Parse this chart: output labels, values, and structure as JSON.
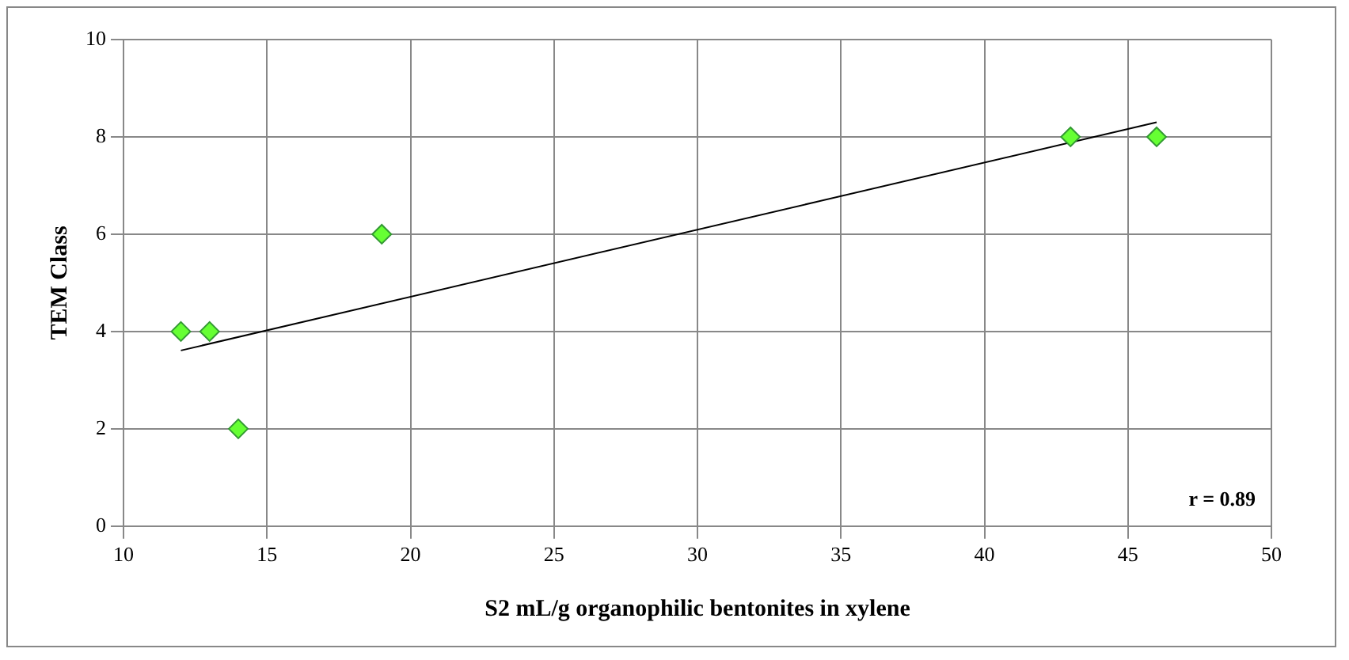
{
  "chart_data": {
    "type": "scatter",
    "xlabel": "S2 mL/g organophilic bentonites in xylene",
    "ylabel": "TEM Class",
    "x": [
      12,
      13,
      14,
      19,
      43,
      46
    ],
    "series": [
      {
        "color": "#66ff33",
        "marker": "diamond",
        "values": [
          4,
          4,
          2,
          6,
          8,
          8
        ]
      },
      {
        "type": "line",
        "color": "#000000",
        "x": [
          12,
          46
        ],
        "values": [
          3.61,
          8.3
        ]
      }
    ],
    "xlim": [
      10,
      50
    ],
    "xticks": [
      10,
      15,
      20,
      25,
      30,
      35,
      40,
      45,
      50
    ],
    "ylim": [
      0,
      10
    ],
    "yticks": [
      0,
      2,
      4,
      6,
      8,
      10
    ],
    "grid": true,
    "legend": false,
    "annotations": [
      "r = 0.89"
    ]
  }
}
